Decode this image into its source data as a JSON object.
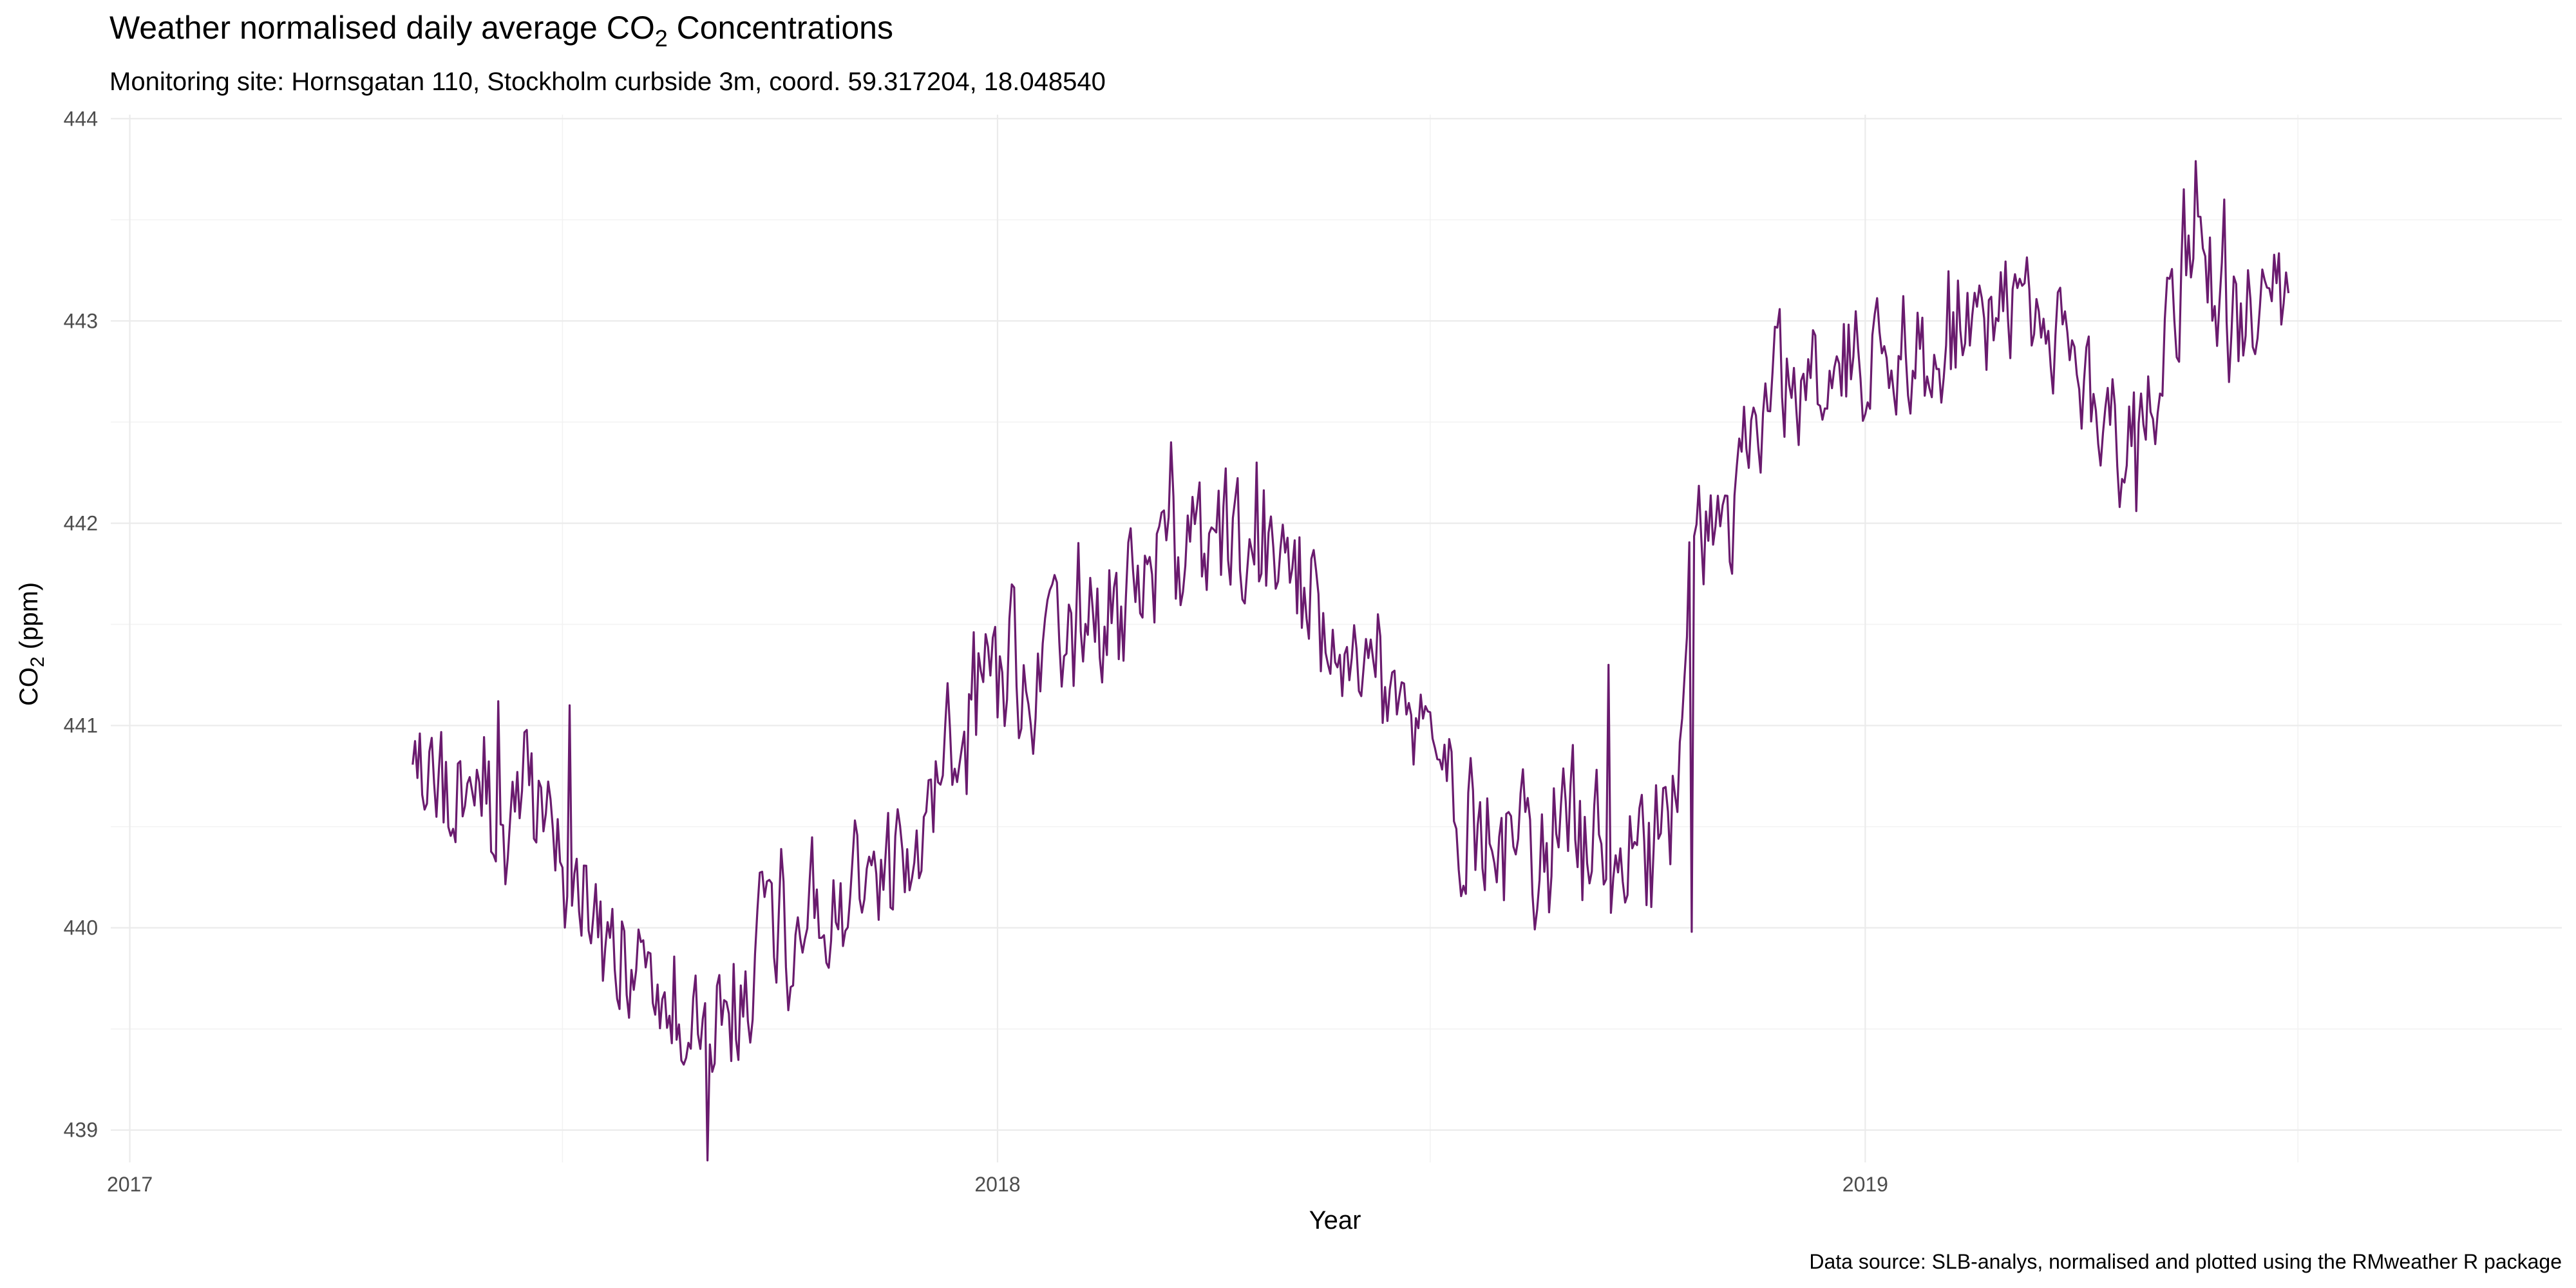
{
  "chart_data": {
    "type": "line",
    "title_parts": {
      "pre": "Weather normalised daily average CO",
      "sub": "2",
      "post": " Concentrations"
    },
    "subtitle": "Monitoring site: Hornsgatan 110, Stockholm curbside 3m, coord. 59.317204, 18.048540",
    "caption": "Data source: SLB-analys, normalised and plotted using the RMweather R package",
    "xlabel": "Year",
    "ylabel_parts": {
      "pre": "CO",
      "sub": "2",
      "post": " (ppm)"
    },
    "x_ticks": [
      "2017",
      "2018",
      "2019"
    ],
    "y_ticks": [
      439,
      440,
      441,
      442,
      443,
      444
    ],
    "xlim": [
      "2016-12-24",
      "2019-10-21"
    ],
    "ylim": [
      438.84,
      444.02
    ],
    "grid": true,
    "line_color": "#6a1b6e",
    "series": [
      {
        "anchors": [
          [
            "2017-04-30",
            440.7
          ],
          [
            "2017-05-20",
            440.65
          ],
          [
            "2017-06-10",
            440.65
          ],
          [
            "2017-06-30",
            440.5
          ],
          [
            "2017-07-15",
            440.0
          ],
          [
            "2017-08-01",
            439.7
          ],
          [
            "2017-08-20",
            439.55
          ],
          [
            "2017-09-10",
            439.55
          ],
          [
            "2017-09-25",
            439.9
          ],
          [
            "2017-10-15",
            440.1
          ],
          [
            "2017-11-05",
            440.15
          ],
          [
            "2017-11-25",
            440.3
          ],
          [
            "2017-12-10",
            440.8
          ],
          [
            "2017-12-25",
            441.15
          ],
          [
            "2018-01-15",
            441.35
          ],
          [
            "2018-02-10",
            441.6
          ],
          [
            "2018-03-10",
            441.75
          ],
          [
            "2018-04-05",
            441.85
          ],
          [
            "2018-05-05",
            441.75
          ],
          [
            "2018-06-01",
            441.4
          ],
          [
            "2018-06-25",
            441.0
          ],
          [
            "2018-07-15",
            440.6
          ],
          [
            "2018-08-10",
            440.45
          ],
          [
            "2018-09-10",
            440.45
          ],
          [
            "2018-10-05",
            440.4
          ],
          [
            "2018-10-15",
            440.9
          ],
          [
            "2018-10-22",
            442.15
          ],
          [
            "2018-11-05",
            442.0
          ],
          [
            "2018-11-20",
            442.65
          ],
          [
            "2018-12-20",
            442.8
          ],
          [
            "2019-01-20",
            442.9
          ],
          [
            "2019-02-20",
            443.05
          ],
          [
            "2019-03-20",
            442.9
          ],
          [
            "2019-04-05",
            442.65
          ],
          [
            "2019-04-20",
            442.45
          ],
          [
            "2019-05-01",
            442.6
          ],
          [
            "2019-05-15",
            443.35
          ],
          [
            "2019-05-30",
            443.1
          ],
          [
            "2019-06-15",
            442.95
          ],
          [
            "2019-06-28",
            443.0
          ]
        ],
        "spikes": [
          [
            "2017-06-05",
            441.12
          ],
          [
            "2017-07-05",
            441.1
          ],
          [
            "2017-09-01",
            438.85
          ],
          [
            "2018-03-15",
            442.4
          ],
          [
            "2018-04-20",
            442.3
          ],
          [
            "2018-06-10",
            441.55
          ],
          [
            "2018-09-15",
            441.3
          ],
          [
            "2018-10-20",
            439.98
          ],
          [
            "2018-11-18",
            442.25
          ],
          [
            "2019-04-25",
            442.06
          ],
          [
            "2019-05-20",
            443.79
          ],
          [
            "2019-06-01",
            443.6
          ]
        ]
      }
    ]
  }
}
